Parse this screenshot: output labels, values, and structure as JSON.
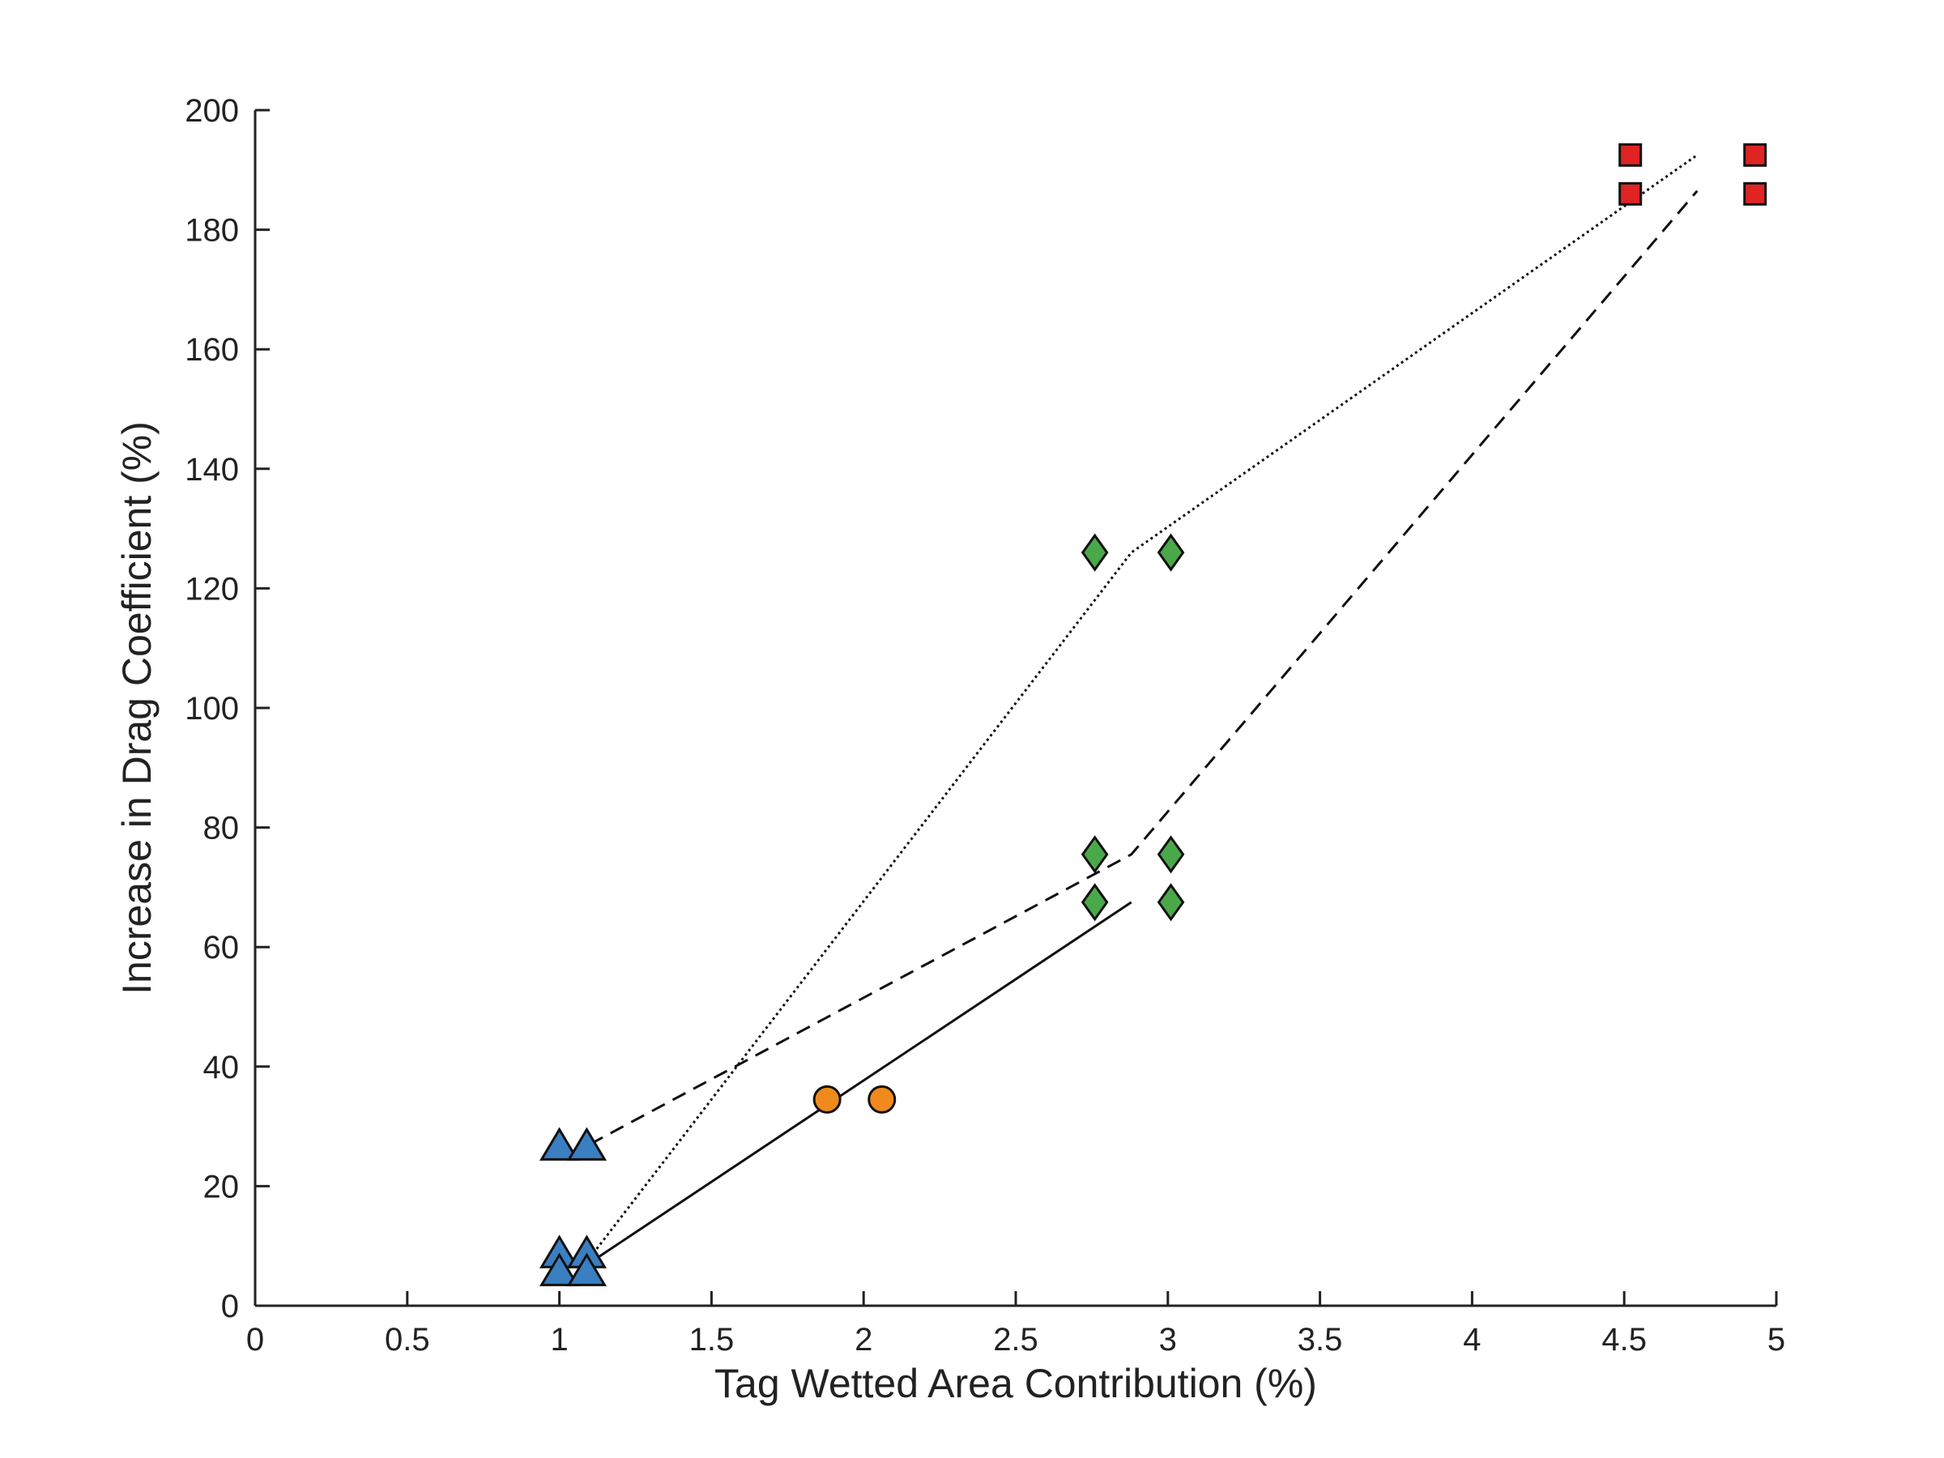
{
  "chart_data": {
    "type": "scatter",
    "xlabel": "Tag Wetted Area Contribution (%)",
    "ylabel": "Increase in Drag Coefficient (%)",
    "xlim": [
      0,
      5
    ],
    "ylim": [
      0,
      200
    ],
    "xticks": [
      0,
      0.5,
      1,
      1.5,
      2,
      2.5,
      3,
      3.5,
      4,
      4.5,
      5
    ],
    "xtick_labels": [
      "0",
      "0.5",
      "1",
      "1.5",
      "2",
      "2.5",
      "3",
      "3.5",
      "4",
      "4.5",
      "5"
    ],
    "yticks": [
      0,
      20,
      40,
      60,
      80,
      100,
      120,
      140,
      160,
      180,
      200
    ],
    "ytick_labels": [
      "0",
      "20",
      "40",
      "60",
      "80",
      "100",
      "120",
      "140",
      "160",
      "180",
      "200"
    ],
    "grid": false,
    "legend": "none",
    "series": [
      {
        "marker": "triangle",
        "color": "#3a7fc1",
        "points": [
          [
            1.0,
            26.5
          ],
          [
            1.09,
            26.5
          ],
          [
            1.0,
            8.5
          ],
          [
            1.09,
            8.5
          ],
          [
            1.0,
            5.5
          ],
          [
            1.09,
            5.5
          ]
        ]
      },
      {
        "marker": "circle",
        "color": "#f08a1c",
        "points": [
          [
            1.88,
            34.5
          ],
          [
            2.06,
            34.5
          ]
        ]
      },
      {
        "marker": "diamond",
        "color": "#4aa84a",
        "points": [
          [
            2.76,
            126
          ],
          [
            3.01,
            126
          ],
          [
            2.76,
            75.5
          ],
          [
            3.01,
            75.5
          ],
          [
            2.76,
            67.5
          ],
          [
            3.01,
            67.5
          ]
        ]
      },
      {
        "marker": "square",
        "color": "#e02323",
        "points": [
          [
            4.52,
            192.5
          ],
          [
            4.93,
            192.5
          ],
          [
            4.52,
            186
          ],
          [
            4.93,
            186
          ]
        ]
      }
    ],
    "fit_lines": [
      {
        "style": "solid",
        "points": [
          [
            1.08,
            6.5
          ],
          [
            2.88,
            67.5
          ]
        ]
      },
      {
        "style": "dashed",
        "points": [
          [
            1.1,
            27
          ],
          [
            2.88,
            75.5
          ],
          [
            4.74,
            186.5
          ]
        ]
      },
      {
        "style": "dotted",
        "points": [
          [
            1.1,
            8
          ],
          [
            2.88,
            126
          ],
          [
            4.74,
            192.5
          ]
        ]
      }
    ]
  }
}
